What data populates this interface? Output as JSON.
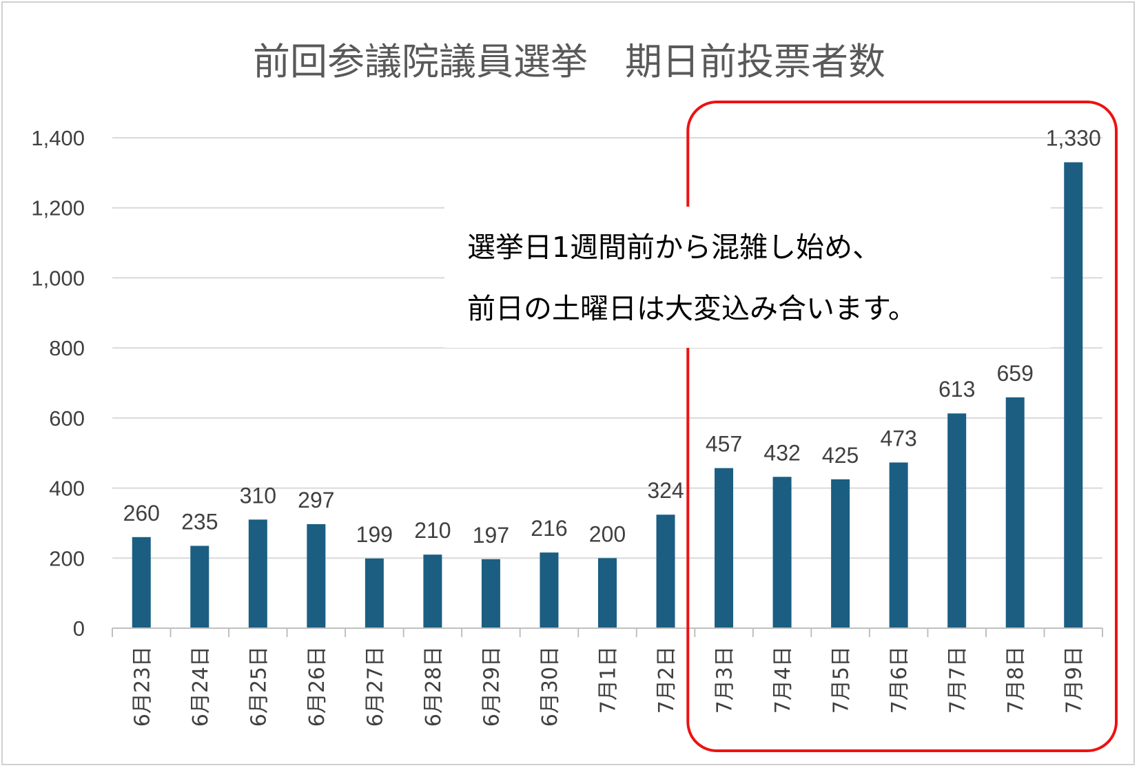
{
  "chart_data": {
    "type": "bar",
    "title": "前回参議院議員選挙　期日前投票者数",
    "categories": [
      "6月23日",
      "6月24日",
      "6月25日",
      "6月26日",
      "6月27日",
      "6月28日",
      "6月29日",
      "6月30日",
      "7月1日",
      "7月2日",
      "7月3日",
      "7月4日",
      "7月5日",
      "7月6日",
      "7月7日",
      "7月8日",
      "7月9日"
    ],
    "values": [
      260,
      235,
      310,
      297,
      199,
      210,
      197,
      216,
      200,
      324,
      457,
      432,
      425,
      473,
      613,
      659,
      1330
    ],
    "data_labels": [
      "260",
      "235",
      "310",
      "297",
      "199",
      "210",
      "197",
      "216",
      "200",
      "324",
      "457",
      "432",
      "425",
      "473",
      "613",
      "659",
      "1,330"
    ],
    "y_ticks": [
      0,
      200,
      400,
      600,
      800,
      1000,
      1200,
      1400
    ],
    "y_tick_labels": [
      "0",
      "200",
      "400",
      "600",
      "800",
      "1,000",
      "1,200",
      "1,400"
    ],
    "ylim": [
      0,
      1400
    ],
    "grid": true,
    "bar_color": "#1b5e82",
    "highlight": {
      "from_category": "7月3日",
      "to_category": "7月9日",
      "color": "#ee1111"
    },
    "annotation": {
      "lines": [
        "選挙日1週間前から混雑し始め、",
        "前日の土曜日は大変込み合います。"
      ]
    }
  }
}
